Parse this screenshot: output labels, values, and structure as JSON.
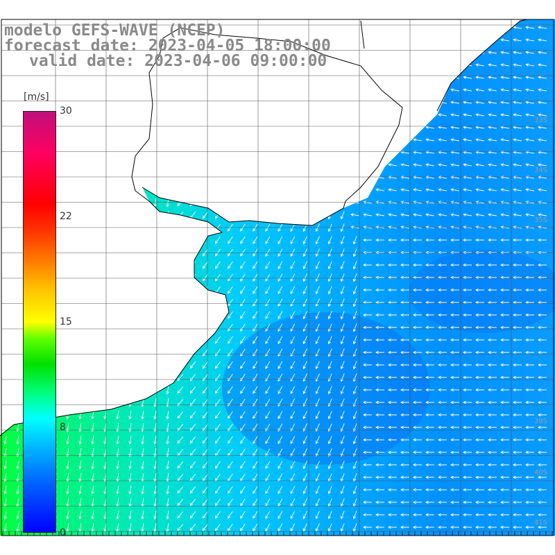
{
  "title": {
    "line1": "modelo GEFS-WAVE (NCEP)",
    "line2": "forecast date: 2023-04-05 18:00:00",
    "line3": "valid date: 2023-04-06 09:00:00"
  },
  "colorbar": {
    "unit": "[m/s]",
    "ticks": [
      "30",
      "22",
      "15",
      "8",
      "0"
    ],
    "tick_values": [
      30,
      22,
      15,
      8,
      0
    ],
    "range": [
      0,
      30
    ]
  },
  "lat_labels": [
    "33S",
    "34S",
    "35S",
    "39S",
    "40S",
    "41S"
  ],
  "colors": {
    "land": "#ffffff",
    "coast": "#000000",
    "grid": "#444444",
    "wind_low": "#0000ff",
    "wind_mid": "#00ffff",
    "wind_high": "#00ff00",
    "arrow": "#ffffff",
    "title_text": "#8a8a8a"
  }
}
